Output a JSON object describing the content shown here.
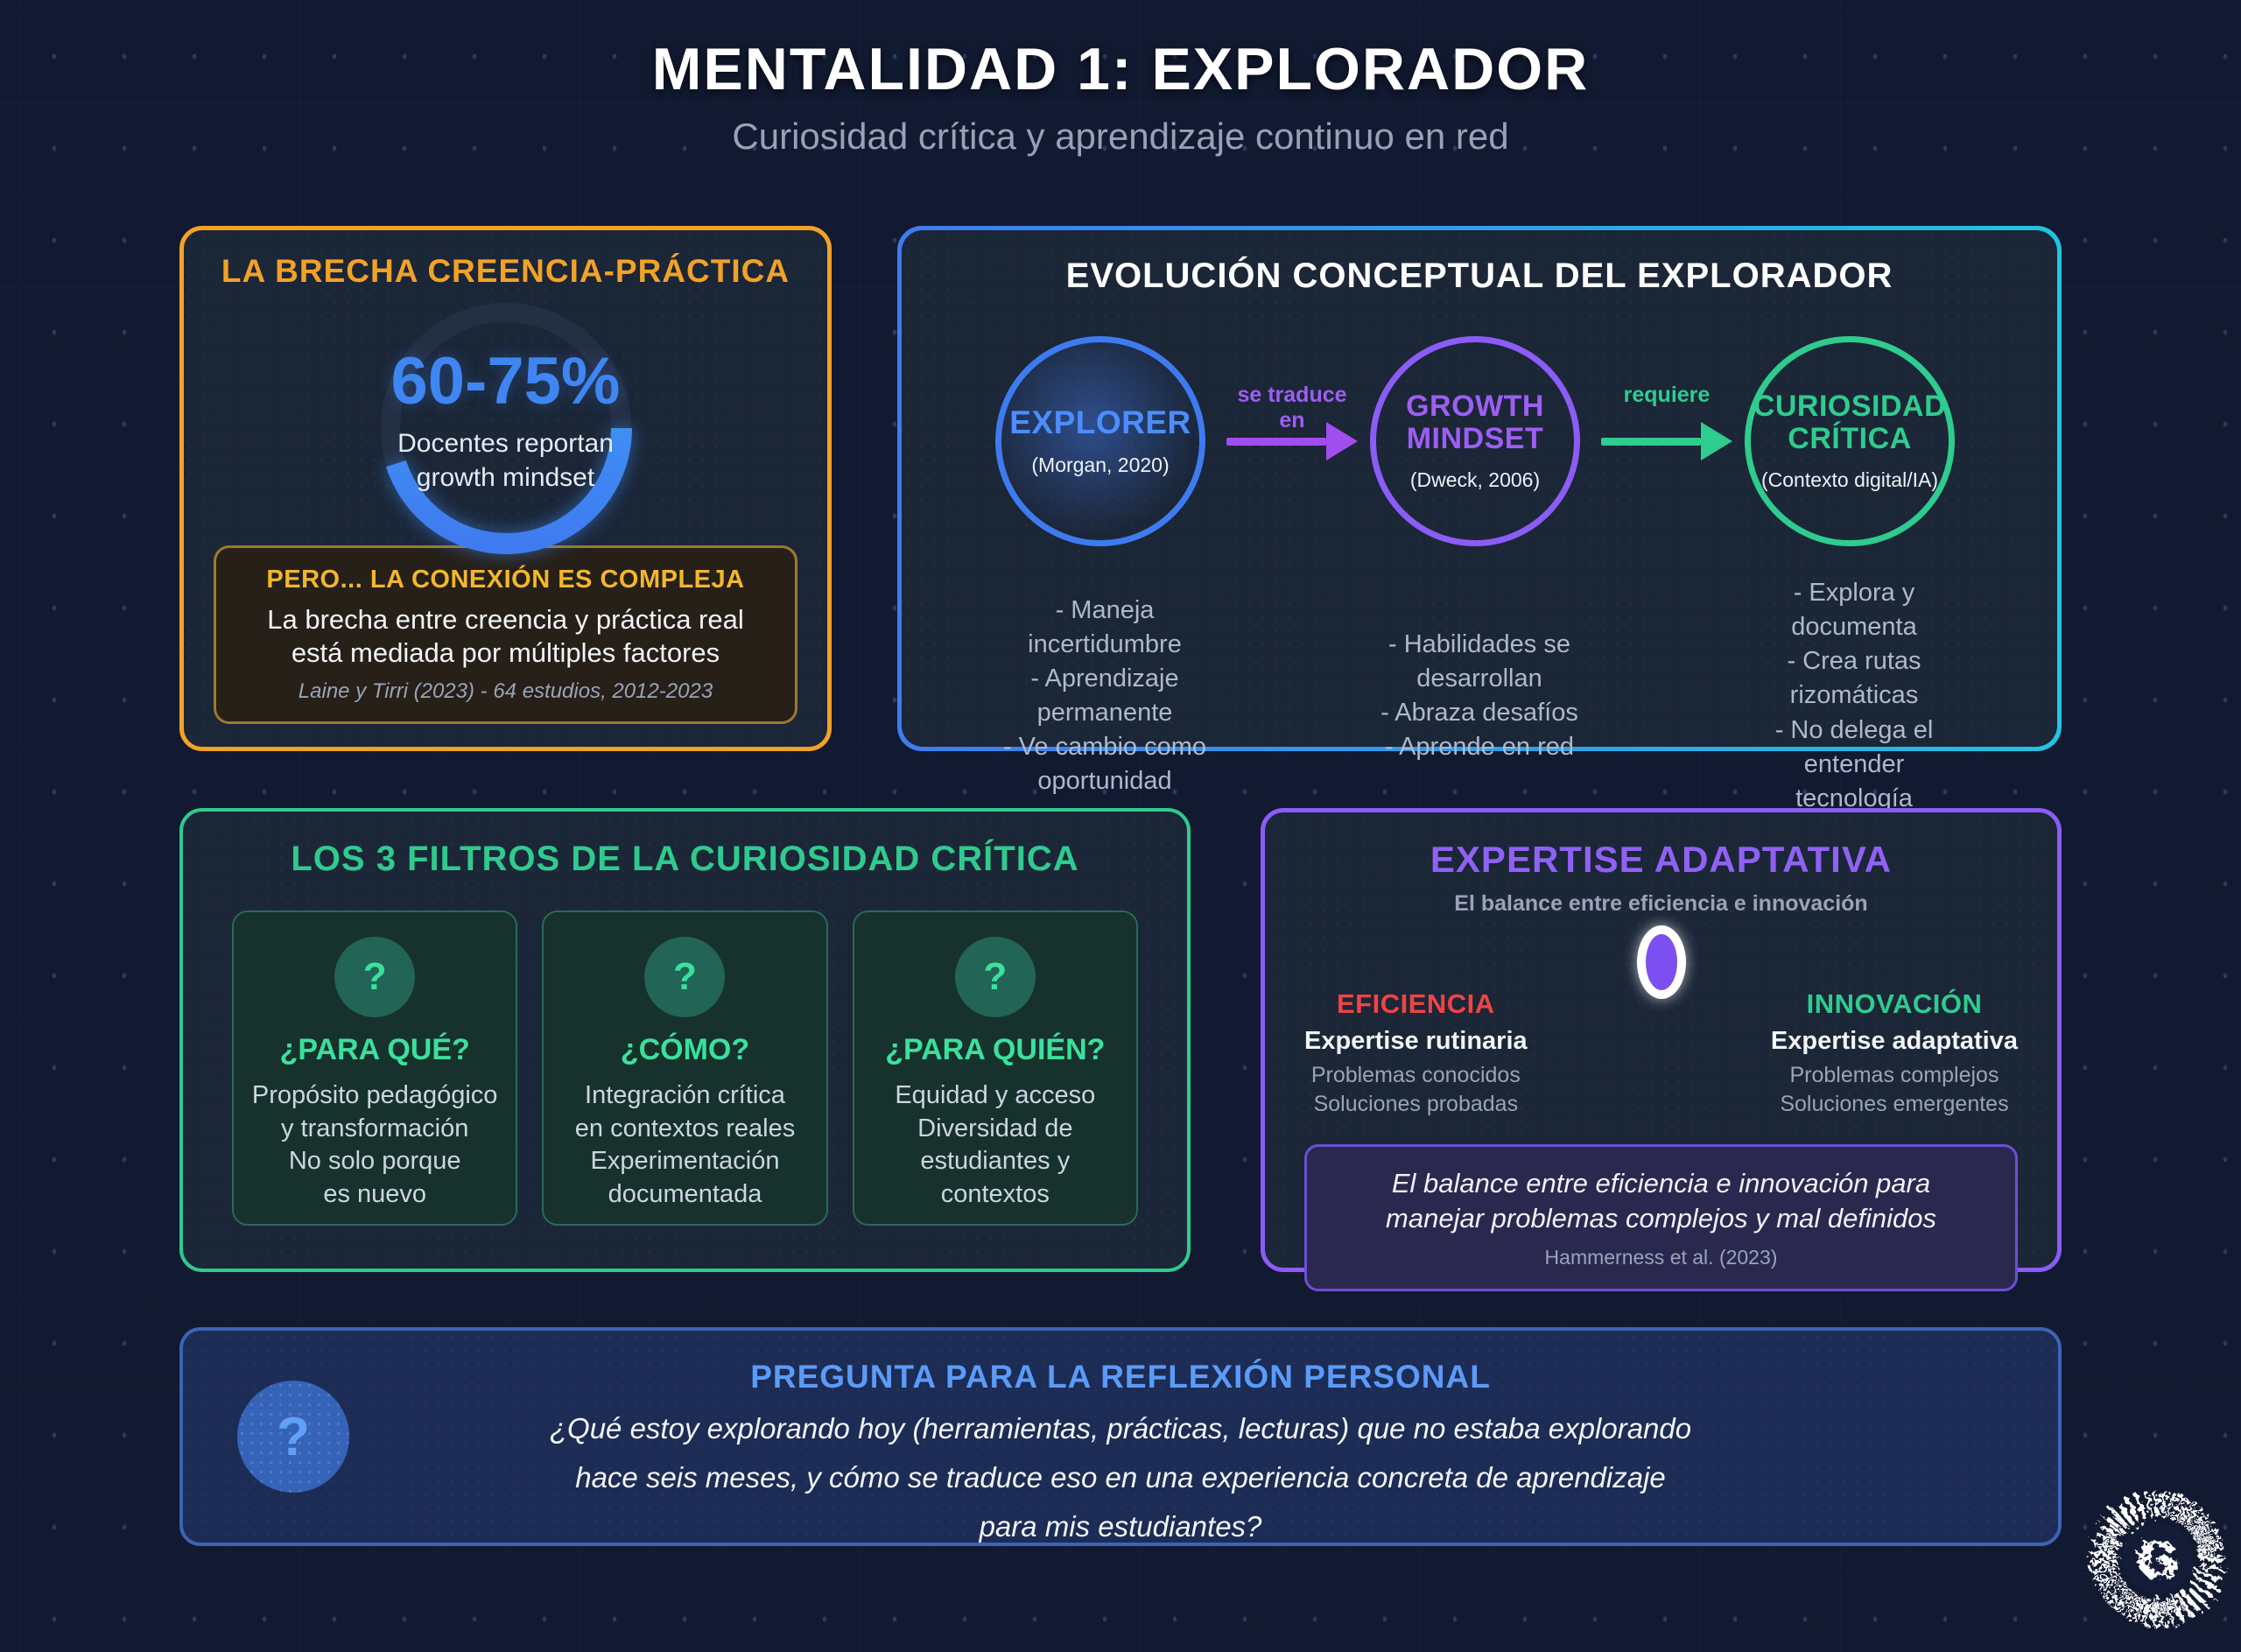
{
  "page": {
    "title": "MENTALIDAD 1: EXPLORADOR",
    "subtitle": "Curiosidad crítica y aprendizaje continuo en red"
  },
  "brecha": {
    "title": "LA BRECHA CREENCIA-PRÁCTICA",
    "donut": {
      "percent": 70,
      "value_label": "60-75%",
      "caption": "Docentes reportan\ngrowth mindset"
    },
    "note": {
      "title": "PERO... LA CONEXIÓN ES COMPLEJA",
      "body": "La brecha entre creencia y práctica real\nestá mediada por múltiples factores",
      "citation": "Laine y Tirri (2023) - 64 estudios, 2012-2023"
    }
  },
  "evolucion": {
    "title": "EVOLUCIÓN CONCEPTUAL DEL EXPLORADOR",
    "stages": [
      {
        "name": "EXPLORER",
        "source": "(Morgan, 2020)",
        "bullets": "- Maneja incertidumbre\n- Aprendizaje permanente\n- Ve cambio como\noportunidad"
      },
      {
        "name": "GROWTH\nMINDSET",
        "source": "(Dweck, 2006)",
        "bullets": "- Habilidades se\ndesarrollan\n- Abraza desafíos\n- Aprende en red"
      },
      {
        "name": "CURIOSIDAD\nCRÍTICA",
        "source": "(Contexto digital/IA)",
        "bullets": "- Explora y documenta\n- Crea rutas rizomáticas\n- No delega el\nentender tecnología"
      }
    ],
    "arrows": [
      {
        "label": "se traduce en"
      },
      {
        "label": "requiere"
      }
    ]
  },
  "filtros": {
    "title": "LOS 3 FILTROS DE LA CURIOSIDAD CRÍTICA",
    "items": [
      {
        "icon": "?",
        "title": "¿PARA QUÉ?",
        "body": "Propósito pedagógico\ny transformación\nNo solo porque\nes nuevo"
      },
      {
        "icon": "?",
        "title": "¿CÓMO?",
        "body": "Integración crítica\nen contextos reales\nExperimentación\ndocumentada"
      },
      {
        "icon": "?",
        "title": "¿PARA QUIÉN?",
        "body": "Equidad y acceso\nDiversidad de\nestudiantes y\ncontextos"
      }
    ]
  },
  "expertise": {
    "title": "EXPERTISE ADAPTATIVA",
    "subtitle": "El balance entre eficiencia e innovación",
    "slider": {
      "position_percent": 50
    },
    "left": {
      "label": "EFICIENCIA",
      "heading": "Expertise rutinaria",
      "lines": "Problemas conocidos\nSoluciones probadas"
    },
    "right": {
      "label": "INNOVACIÓN",
      "heading": "Expertise adaptativa",
      "lines": "Problemas complejos\nSoluciones emergentes"
    },
    "note": {
      "body": "El balance entre eficiencia e innovación para\nmanejar problemas complejos y mal definidos",
      "citation": "Hammerness et al. (2023)"
    }
  },
  "reflexion": {
    "title": "PREGUNTA PARA LA REFLEXIÓN PERSONAL",
    "icon": "?",
    "question": "¿Qué estoy explorando hoy (herramientas, prácticas, lecturas) que no estaba explorando\nhace seis meses, y cómo se traduce eso en una experiencia concreta de aprendizaje\npara mis estudiantes?"
  },
  "logo": {
    "letter": "G"
  },
  "colors": {
    "background": "#121a31",
    "card_background": "#1b2637",
    "orange_accent": "#f2a227",
    "gold_accent": "#f3b62d",
    "blue_accent": "#3f86f2",
    "teal_accent": "#2dd4bf",
    "purple_accent": "#8b5cf6",
    "green_accent": "#2ecc8e",
    "red_accent": "#ef4444",
    "light_blue_accent": "#5b9bf8",
    "body_gray": "#aeb9cc"
  }
}
